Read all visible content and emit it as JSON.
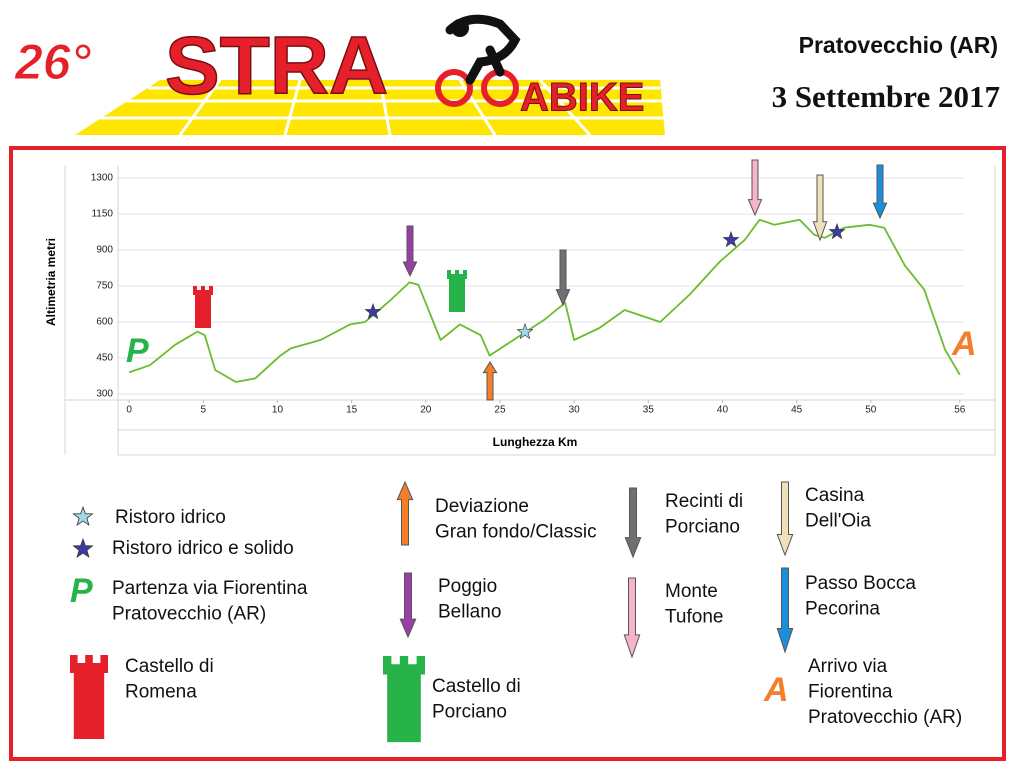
{
  "header": {
    "edition": "26°",
    "logo_left": "STRA",
    "logo_right": "ABIKE",
    "location": "Pratovecchio (AR)",
    "date": "3 Settembre 2017"
  },
  "chart_data": {
    "type": "line",
    "y_label": "Altimetria metri",
    "x_label": "Lunghezza Km",
    "start_label": "P",
    "end_label": "A",
    "x": [
      0,
      1.4,
      3.1,
      4.6,
      5.1,
      5.8,
      7.2,
      8.5,
      10.2,
      10.9,
      12.9,
      14.9,
      15.9,
      17.6,
      18.9,
      19.5,
      21,
      22.3,
      23.7,
      24.3,
      26.4,
      28,
      29.4,
      30,
      31.7,
      33.4,
      35.8,
      37.8,
      39.8,
      41.5,
      42.5,
      43.5,
      45.2,
      46.2,
      46.9,
      48.2,
      49.9,
      50.9,
      52.3,
      53.6,
      55,
      56
    ],
    "series": [
      {
        "color": "#6dbb2e",
        "values": [
          390,
          420,
          505,
          560,
          545,
          400,
          350,
          365,
          460,
          490,
          525,
          590,
          600,
          690,
          765,
          755,
          525,
          590,
          545,
          460,
          545,
          610,
          680,
          525,
          575,
          650,
          600,
          715,
          850,
          970,
          1110,
          1075,
          1110,
          1005,
          985,
          1055,
          1075,
          1055,
          835,
          735,
          485,
          380
        ]
      }
    ],
    "xlim": [
      -0.75,
      56.35
    ],
    "xticks": [
      0,
      5,
      10,
      15,
      20,
      25,
      30,
      35,
      40,
      45,
      50,
      56
    ],
    "ylim": [
      300,
      1300
    ],
    "yticks": [
      300,
      450,
      600,
      750,
      900,
      1150,
      1300
    ],
    "grid": true
  },
  "legend": [
    {
      "lines": [
        "Ristoro idrico"
      ]
    },
    {
      "lines": [
        "Ristoro idrico e solido"
      ]
    },
    {
      "lines": [
        "Partenza via Fiorentina",
        "Pratovecchio (AR)"
      ]
    },
    {
      "lines": [
        "Castello di",
        "Romena"
      ]
    },
    {
      "lines": [
        "Deviazione",
        "Gran fondo/Classic"
      ]
    },
    {
      "lines": [
        "Poggio",
        "Bellano"
      ]
    },
    {
      "lines": [
        "Castello di",
        "Porciano"
      ]
    },
    {
      "lines": [
        "Recinti di",
        "Porciano"
      ]
    },
    {
      "lines": [
        "Monte",
        "Tufone"
      ]
    },
    {
      "lines": [
        "Casina",
        "Dell'Oia"
      ]
    },
    {
      "lines": [
        "Passo Bocca",
        "Pecorina"
      ]
    },
    {
      "lines": [
        "Arrivo via",
        "Fiorentina",
        "Pratovecchio (AR)"
      ]
    }
  ]
}
